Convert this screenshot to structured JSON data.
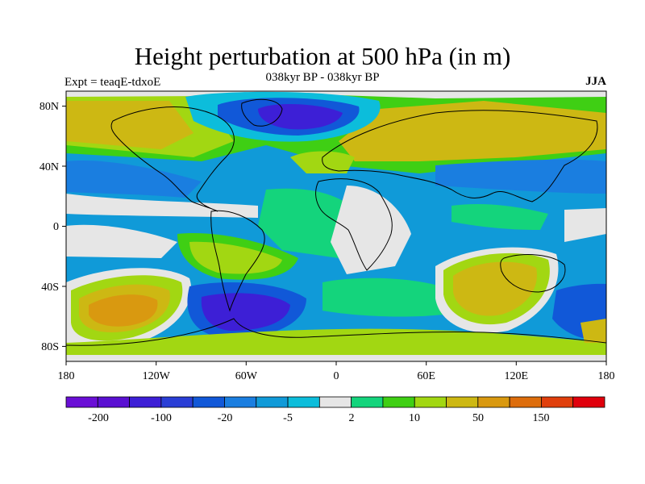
{
  "title": "Height perturbation at 500 hPa (in m)",
  "subtitle": "038kyr BP - 038kyr BP",
  "left_label": "Expt = teaqE-tdxoE",
  "right_label": "JJA",
  "colors": {
    "levels": [
      "#6a0fd6",
      "#5a10d2",
      "#3d1fd6",
      "#2a3ed6",
      "#1158d8",
      "#1a7ee0",
      "#109ad8",
      "#0cbddb",
      "#e6e6e6",
      "#14d47c",
      "#3fcf14",
      "#a2d712",
      "#cdb813",
      "#d99910",
      "#dd6d0c",
      "#e03f0c",
      "#e0000c"
    ]
  },
  "chart_data": {
    "type": "heatmap",
    "title": "Height perturbation at 500 hPa (in m)",
    "subtitle": "038kyr BP - 038kyr BP",
    "xlim": [
      -180,
      180
    ],
    "ylim": [
      -90,
      90
    ],
    "x_ticks": [
      {
        "value": -180,
        "label": "180"
      },
      {
        "value": -120,
        "label": "120W"
      },
      {
        "value": -60,
        "label": "60W"
      },
      {
        "value": 0,
        "label": "0"
      },
      {
        "value": 60,
        "label": "60E"
      },
      {
        "value": 120,
        "label": "120E"
      },
      {
        "value": 180,
        "label": "180"
      }
    ],
    "y_ticks": [
      {
        "value": 80,
        "label": "80N"
      },
      {
        "value": 40,
        "label": "40N"
      },
      {
        "value": 0,
        "label": "0"
      },
      {
        "value": -40,
        "label": "40S"
      },
      {
        "value": -80,
        "label": "80S"
      }
    ],
    "colorbar_labels": [
      "-200",
      "-100",
      "-20",
      "-5",
      "2",
      "10",
      "50",
      "150"
    ],
    "regions": [
      {
        "lon": -160,
        "lat": 60,
        "value": 50
      },
      {
        "lon": -100,
        "lat": 65,
        "value": 20
      },
      {
        "lon": -40,
        "lat": 70,
        "value": -150
      },
      {
        "lon": 40,
        "lat": 65,
        "value": 50
      },
      {
        "lon": 120,
        "lat": 65,
        "value": 30
      },
      {
        "lon": -130,
        "lat": 30,
        "value": -20
      },
      {
        "lon": 100,
        "lat": 35,
        "value": -40
      },
      {
        "lon": -140,
        "lat": -10,
        "value": 5
      },
      {
        "lon": -80,
        "lat": -25,
        "value": 40
      },
      {
        "lon": 20,
        "lat": -10,
        "value": 0
      },
      {
        "lon": 70,
        "lat": -15,
        "value": -30
      },
      {
        "lon": -150,
        "lat": -55,
        "value": 80
      },
      {
        "lon": -75,
        "lat": -60,
        "value": -150
      },
      {
        "lon": 100,
        "lat": -50,
        "value": 80
      },
      {
        "lon": 160,
        "lat": -60,
        "value": -40
      },
      {
        "lon": 10,
        "lat": -70,
        "value": 20
      }
    ]
  }
}
